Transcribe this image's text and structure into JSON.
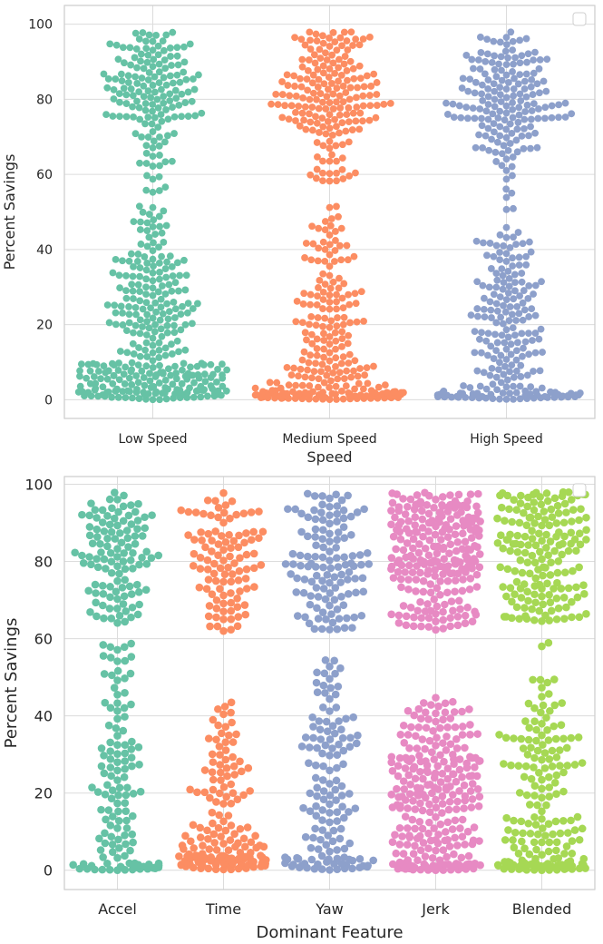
{
  "chart_data": [
    {
      "type": "swarm",
      "xlabel": "Speed",
      "ylabel": "Percent Savings",
      "ylim": [
        -5,
        105
      ],
      "yticks": [
        0,
        20,
        40,
        60,
        80,
        100
      ],
      "grid": true,
      "legend": "top-right (empty)",
      "categories": [
        {
          "name": "Low Speed",
          "color": "#66c2a5",
          "count": 470,
          "distribution": [
            {
              "range": [
                0,
                10
              ],
              "weight": 0.34
            },
            {
              "range": [
                10,
                20
              ],
              "weight": 0.09
            },
            {
              "range": [
                20,
                30
              ],
              "weight": 0.12
            },
            {
              "range": [
                30,
                40
              ],
              "weight": 0.09
            },
            {
              "range": [
                40,
                52
              ],
              "weight": 0.05
            },
            {
              "range": [
                55,
                62
              ],
              "weight": 0.015
            },
            {
              "range": [
                62,
                75
              ],
              "weight": 0.06
            },
            {
              "range": [
                75,
                90
              ],
              "weight": 0.2
            },
            {
              "range": [
                90,
                98
              ],
              "weight": 0.075
            }
          ]
        },
        {
          "name": "Medium Speed",
          "color": "#fc8d62",
          "count": 430,
          "distribution": [
            {
              "range": [
                0,
                2
              ],
              "weight": 0.17
            },
            {
              "range": [
                2,
                10
              ],
              "weight": 0.14
            },
            {
              "range": [
                10,
                20
              ],
              "weight": 0.08
            },
            {
              "range": [
                20,
                32
              ],
              "weight": 0.1
            },
            {
              "range": [
                32,
                42
              ],
              "weight": 0.05
            },
            {
              "range": [
                42,
                52
              ],
              "weight": 0.03
            },
            {
              "range": [
                58,
                70
              ],
              "weight": 0.06
            },
            {
              "range": [
                70,
                85
              ],
              "weight": 0.22
            },
            {
              "range": [
                85,
                98
              ],
              "weight": 0.15
            }
          ]
        },
        {
          "name": "High Speed",
          "color": "#8da0cb",
          "count": 390,
          "distribution": [
            {
              "range": [
                0,
                2
              ],
              "weight": 0.14
            },
            {
              "range": [
                2,
                10
              ],
              "weight": 0.09
            },
            {
              "range": [
                10,
                20
              ],
              "weight": 0.1
            },
            {
              "range": [
                20,
                32
              ],
              "weight": 0.13
            },
            {
              "range": [
                32,
                46
              ],
              "weight": 0.09
            },
            {
              "range": [
                50,
                62
              ],
              "weight": 0.02
            },
            {
              "range": [
                62,
                74
              ],
              "weight": 0.1
            },
            {
              "range": [
                74,
                86
              ],
              "weight": 0.21
            },
            {
              "range": [
                86,
                98
              ],
              "weight": 0.12
            }
          ]
        }
      ]
    },
    {
      "type": "swarm",
      "xlabel": "Dominant Feature",
      "ylabel": "Percent Savings",
      "ylim": [
        -5,
        102
      ],
      "yticks": [
        0,
        20,
        40,
        60,
        80,
        100
      ],
      "grid": true,
      "legend": "top-right (empty)",
      "categories": [
        {
          "name": "Accel",
          "color": "#66c2a5",
          "count": 240,
          "distribution": [
            {
              "range": [
                0,
                2
              ],
              "weight": 0.12
            },
            {
              "range": [
                2,
                10
              ],
              "weight": 0.07
            },
            {
              "range": [
                10,
                30
              ],
              "weight": 0.17
            },
            {
              "range": [
                30,
                46
              ],
              "weight": 0.1
            },
            {
              "range": [
                46,
                64
              ],
              "weight": 0.07
            },
            {
              "range": [
                64,
                80
              ],
              "weight": 0.2
            },
            {
              "range": [
                80,
                98
              ],
              "weight": 0.27
            }
          ]
        },
        {
          "name": "Time",
          "color": "#fc8d62",
          "count": 270,
          "distribution": [
            {
              "range": [
                0,
                4
              ],
              "weight": 0.27
            },
            {
              "range": [
                4,
                12
              ],
              "weight": 0.14
            },
            {
              "range": [
                12,
                30
              ],
              "weight": 0.14
            },
            {
              "range": [
                30,
                45
              ],
              "weight": 0.07
            },
            {
              "range": [
                60,
                72
              ],
              "weight": 0.09
            },
            {
              "range": [
                72,
                88
              ],
              "weight": 0.22
            },
            {
              "range": [
                88,
                98
              ],
              "weight": 0.07
            }
          ]
        },
        {
          "name": "Yaw",
          "color": "#8da0cb",
          "count": 260,
          "distribution": [
            {
              "range": [
                0,
                4
              ],
              "weight": 0.14
            },
            {
              "range": [
                4,
                15
              ],
              "weight": 0.09
            },
            {
              "range": [
                15,
                35
              ],
              "weight": 0.19
            },
            {
              "range": [
                35,
                55
              ],
              "weight": 0.12
            },
            {
              "range": [
                62,
                78
              ],
              "weight": 0.2
            },
            {
              "range": [
                78,
                88
              ],
              "weight": 0.15
            },
            {
              "range": [
                88,
                98
              ],
              "weight": 0.11
            }
          ]
        },
        {
          "name": "Jerk",
          "color": "#e78ac3",
          "count": 520,
          "distribution": [
            {
              "range": [
                0,
                2
              ],
              "weight": 0.1
            },
            {
              "range": [
                2,
                16
              ],
              "weight": 0.13
            },
            {
              "range": [
                16,
                30
              ],
              "weight": 0.2
            },
            {
              "range": [
                30,
                45
              ],
              "weight": 0.1
            },
            {
              "range": [
                62,
                75
              ],
              "weight": 0.11
            },
            {
              "range": [
                75,
                88
              ],
              "weight": 0.2
            },
            {
              "range": [
                88,
                98
              ],
              "weight": 0.16
            }
          ]
        },
        {
          "name": "Blended",
          "color": "#a6d854",
          "count": 360,
          "distribution": [
            {
              "range": [
                0,
                2
              ],
              "weight": 0.15
            },
            {
              "range": [
                2,
                10
              ],
              "weight": 0.1
            },
            {
              "range": [
                10,
                25
              ],
              "weight": 0.1
            },
            {
              "range": [
                25,
                40
              ],
              "weight": 0.13
            },
            {
              "range": [
                40,
                50
              ],
              "weight": 0.04
            },
            {
              "range": [
                56,
                60
              ],
              "weight": 0.005
            },
            {
              "range": [
                64,
                80
              ],
              "weight": 0.2
            },
            {
              "range": [
                80,
                90
              ],
              "weight": 0.14
            },
            {
              "range": [
                90,
                98
              ],
              "weight": 0.135
            }
          ]
        }
      ]
    }
  ]
}
